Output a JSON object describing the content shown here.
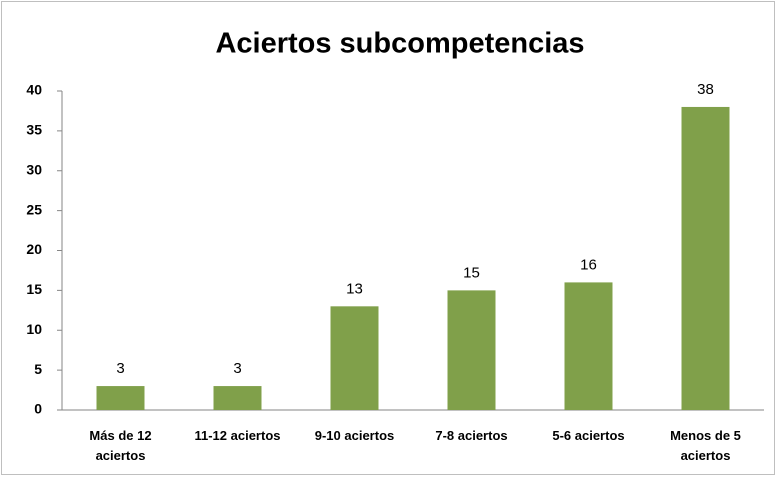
{
  "chart_data": {
    "type": "bar",
    "title": "Aciertos subcompetencias",
    "categories": [
      "Más de 12 aciertos",
      "11-12 aciertos",
      "9-10 aciertos",
      "7-8 aciertos",
      "5-6 aciertos",
      "Menos de 5 aciertos"
    ],
    "values": [
      3,
      3,
      13,
      15,
      16,
      38
    ],
    "color": "#80a04a",
    "ylim": [
      0,
      40
    ],
    "yticks": [
      0,
      5,
      10,
      15,
      20,
      25,
      30,
      35,
      40
    ],
    "grid": false
  }
}
